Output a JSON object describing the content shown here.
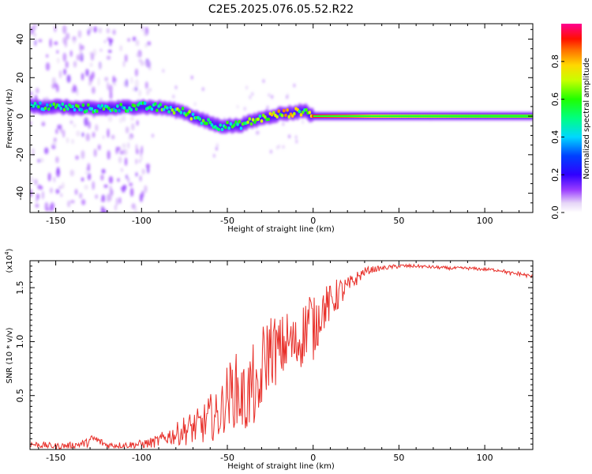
{
  "title": "C2E5.2025.076.05.52.R22",
  "chart_data": [
    {
      "type": "heatmap",
      "xlabel": "Height of straight line (km)",
      "ylabel": "Frequency (Hz)",
      "xlim": [
        -165,
        128
      ],
      "ylim": [
        -50,
        48
      ],
      "xticks": [
        -150,
        -100,
        -50,
        0,
        50,
        100
      ],
      "xtick_labels": [
        "-150",
        "-100",
        "-50",
        "0",
        "50",
        "100"
      ],
      "yticks": [
        -40,
        -20,
        0,
        20,
        40
      ],
      "ytick_labels": [
        "-40",
        "-20",
        "0",
        "20",
        "40"
      ],
      "colorbar": {
        "label": "Normalized spectral amplitude",
        "range": [
          0,
          1
        ],
        "ticks": [
          0.0,
          0.2,
          0.4,
          0.6,
          0.8
        ],
        "tick_labels": [
          "0.0",
          "0.2",
          "0.4",
          "0.6",
          "0.8"
        ],
        "colormap": "rainbow (white → violet → blue → cyan → green → yellow → red → magenta)"
      },
      "ridge": {
        "x": [
          -165,
          -150,
          -135,
          -120,
          -100,
          -85,
          -75,
          -65,
          -55,
          -45,
          -40,
          -30,
          -20,
          -10,
          -5,
          0,
          20,
          50,
          100,
          128
        ],
        "freq": [
          5,
          5,
          4,
          4,
          5,
          4,
          2,
          -2,
          -5,
          -5,
          -4,
          -1,
          1,
          2,
          3,
          0,
          0,
          0,
          0,
          0
        ],
        "peak_amplitude": [
          0.55,
          0.55,
          0.55,
          0.55,
          0.55,
          0.6,
          0.65,
          0.6,
          0.55,
          0.55,
          0.6,
          0.7,
          0.8,
          0.75,
          0.7,
          0.9,
          0.85,
          0.7,
          0.65,
          0.65
        ]
      },
      "scatter_noise": "scattered low-amplitude energy between -165 and -95 km across -50 to 48 Hz"
    },
    {
      "type": "line",
      "xlabel": "Height of straight line (km)",
      "ylabel": "SNR (10 * v/v)",
      "yscale_label": "(x10",
      "yscale_exp": "4",
      "xlim": [
        -165,
        128
      ],
      "ylim": [
        0,
        1.75
      ],
      "xticks": [
        -150,
        -100,
        -50,
        0,
        50,
        100
      ],
      "xtick_labels": [
        "-150",
        "-100",
        "-50",
        "0",
        "50",
        "100"
      ],
      "yticks": [
        0.5,
        1.0,
        1.5
      ],
      "ytick_labels": [
        "0.5",
        "1.0",
        "1.5"
      ],
      "color": "#e8302a",
      "series": [
        {
          "x": [
            -165,
            -150,
            -140,
            -132,
            -128,
            -120,
            -110,
            -100,
            -95,
            -90,
            -85,
            -80,
            -75,
            -70,
            -65,
            -60,
            -55,
            -50,
            -45,
            -40,
            -35,
            -32,
            -30,
            -25,
            -20,
            -15,
            -10,
            -5,
            -2,
            0,
            5,
            10,
            15,
            20,
            25,
            30,
            35,
            40,
            45,
            50,
            60,
            70,
            80,
            90,
            100,
            110,
            115,
            120,
            128
          ],
          "y": [
            0.05,
            0.03,
            0.04,
            0.06,
            0.1,
            0.04,
            0.04,
            0.05,
            0.06,
            0.08,
            0.12,
            0.14,
            0.18,
            0.2,
            0.22,
            0.3,
            0.3,
            0.5,
            0.55,
            0.45,
            0.6,
            0.35,
            0.75,
            0.95,
            0.9,
            1.0,
            0.95,
            1.1,
            1.25,
            1.1,
            1.3,
            1.35,
            1.45,
            1.5,
            1.58,
            1.65,
            1.67,
            1.68,
            1.69,
            1.7,
            1.7,
            1.69,
            1.68,
            1.68,
            1.67,
            1.66,
            1.63,
            1.63,
            1.6
          ],
          "noise": [
            0.03,
            0.03,
            0.03,
            0.04,
            0.05,
            0.03,
            0.03,
            0.04,
            0.05,
            0.06,
            0.08,
            0.1,
            0.14,
            0.16,
            0.18,
            0.22,
            0.22,
            0.3,
            0.35,
            0.35,
            0.38,
            0.3,
            0.4,
            0.35,
            0.32,
            0.3,
            0.28,
            0.3,
            0.3,
            0.3,
            0.22,
            0.18,
            0.15,
            0.1,
            0.07,
            0.04,
            0.03,
            0.02,
            0.02,
            0.02,
            0.015,
            0.015,
            0.015,
            0.015,
            0.015,
            0.015,
            0.02,
            0.02,
            0.02
          ]
        }
      ]
    }
  ]
}
